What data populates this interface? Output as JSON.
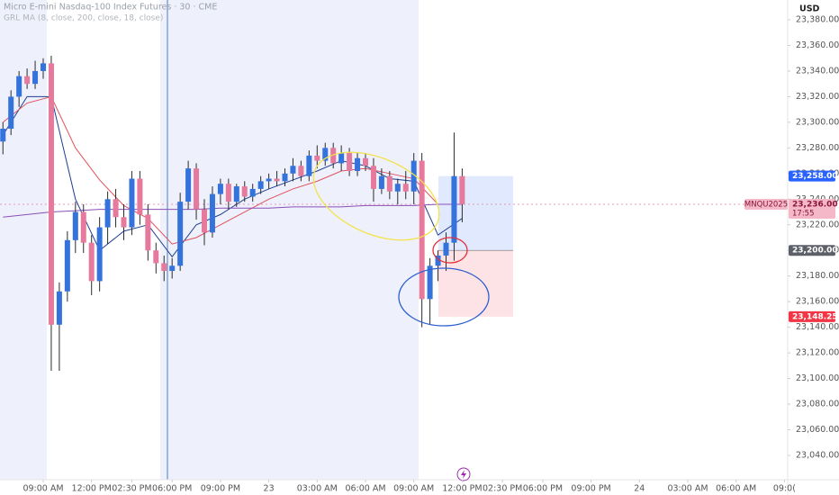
{
  "chart_data": {
    "type": "candlestick",
    "title": "Micro E-mini Nasdaq-100 Index Futures · 30 · CME",
    "subtitle": "GRL MA (8, close, 200, close, 18, close)",
    "currency": "USD",
    "up_color": "#3472dc",
    "down_color": "#e57a9c",
    "wick_color": "#2b2b2b",
    "candles": {
      "open": [
        23285,
        23295,
        23320,
        23336,
        23330,
        23340,
        23346,
        23142,
        23168,
        23208,
        23230,
        23206,
        23176,
        23218,
        23240,
        23226,
        23218,
        23256,
        23228,
        23200,
        23190,
        23184,
        23188,
        23238,
        23264,
        23232,
        23214,
        23244,
        23252,
        23238,
        23250,
        23242,
        23248,
        23254,
        23256,
        23254,
        23260,
        23266,
        23258,
        23274,
        23270,
        23280,
        23268,
        23276,
        23262,
        23272,
        23266,
        23248,
        23258,
        23246,
        23252,
        23246,
        23270,
        23162,
        23188,
        23196,
        23206,
        23258
      ],
      "high": [
        23300,
        23325,
        23340,
        23342,
        23348,
        23350,
        23352,
        23175,
        23215,
        23238,
        23236,
        23212,
        23226,
        23246,
        23248,
        23236,
        23262,
        23262,
        23236,
        23206,
        23196,
        23194,
        23245,
        23270,
        23268,
        23240,
        23250,
        23256,
        23256,
        23252,
        23254,
        23252,
        23258,
        23260,
        23262,
        23264,
        23272,
        23270,
        23278,
        23282,
        23284,
        23284,
        23282,
        23280,
        23276,
        23276,
        23272,
        23264,
        23262,
        23256,
        23262,
        23276,
        23276,
        23194,
        23200,
        23214,
        23292,
        23264
      ],
      "low": [
        23275,
        23290,
        23312,
        23326,
        23326,
        23334,
        23106,
        23106,
        23160,
        23198,
        23198,
        23165,
        23168,
        23205,
        23218,
        23208,
        23212,
        23220,
        23192,
        23182,
        23176,
        23178,
        23184,
        23232,
        23224,
        23204,
        23210,
        23236,
        23232,
        23234,
        23238,
        23238,
        23244,
        23248,
        23250,
        23250,
        23254,
        23254,
        23254,
        23264,
        23266,
        23264,
        23262,
        23258,
        23258,
        23262,
        23238,
        23244,
        23240,
        23236,
        23240,
        23236,
        23140,
        23142,
        23176,
        23184,
        23192,
        23222
      ],
      "close": [
        23295,
        23320,
        23336,
        23330,
        23340,
        23346,
        23142,
        23168,
        23208,
        23230,
        23206,
        23176,
        23218,
        23240,
        23226,
        23218,
        23256,
        23228,
        23200,
        23190,
        23184,
        23188,
        23238,
        23264,
        23232,
        23214,
        23244,
        23252,
        23238,
        23250,
        23242,
        23248,
        23254,
        23256,
        23254,
        23260,
        23266,
        23258,
        23274,
        23270,
        23280,
        23268,
        23276,
        23262,
        23272,
        23266,
        23248,
        23258,
        23246,
        23252,
        23246,
        23270,
        23162,
        23188,
        23196,
        23206,
        23258,
        23236
      ]
    },
    "lines": [
      {
        "color": "#1f3f8f",
        "x": [
          0,
          3,
          6,
          9,
          12,
          15,
          18,
          21,
          24,
          27,
          30,
          33,
          36,
          39,
          42,
          45,
          48,
          51,
          54,
          57
        ],
        "values": [
          23290,
          23320,
          23320,
          23240,
          23200,
          23215,
          23220,
          23195,
          23220,
          23228,
          23240,
          23248,
          23255,
          23262,
          23270,
          23266,
          23256,
          23254,
          23212,
          23225
        ]
      },
      {
        "color": "#e0525c",
        "x": [
          0,
          3,
          6,
          9,
          12,
          15,
          18,
          21,
          24,
          27,
          30,
          33,
          36,
          39,
          42,
          45,
          48,
          51,
          54,
          57
        ],
        "values": [
          23300,
          23315,
          23320,
          23280,
          23255,
          23235,
          23225,
          23205,
          23210,
          23220,
          23230,
          23240,
          23248,
          23254,
          23262,
          23264,
          23260,
          23256,
          23236,
          23236
        ]
      },
      {
        "color": "#8a4fb5",
        "x": [
          0,
          3,
          6,
          9,
          12,
          15,
          18,
          21,
          24,
          27,
          30,
          33,
          36,
          39,
          42,
          45,
          48,
          51,
          54,
          57
        ],
        "values": [
          23226,
          23228,
          23230,
          23231,
          23232,
          23232,
          23232,
          23232,
          23232,
          23233,
          23233,
          23233,
          23234,
          23234,
          23234,
          23235,
          23235,
          23235,
          23236,
          23236
        ]
      }
    ],
    "ylim": [
      23040,
      23380
    ],
    "yticks": [
      {
        "value": 23040,
        "label": "23,040.00"
      },
      {
        "value": 23060,
        "label": "23,060.00"
      },
      {
        "value": 23080,
        "label": "23,080.00"
      },
      {
        "value": 23100,
        "label": "23,100.00"
      },
      {
        "value": 23120,
        "label": "23,120.00"
      },
      {
        "value": 23140,
        "label": "23,140.00"
      },
      {
        "value": 23160,
        "label": "23,160.00"
      },
      {
        "value": 23180,
        "label": "23,180.00"
      },
      {
        "value": 23200,
        "label": "23,200.00"
      },
      {
        "value": 23220,
        "label": "23,220.00"
      },
      {
        "value": 23240,
        "label": "23,240.00"
      },
      {
        "value": 23260,
        "label": "23,260.00"
      },
      {
        "value": 23280,
        "label": "23,280.00"
      },
      {
        "value": 23300,
        "label": "23,300.00"
      },
      {
        "value": 23320,
        "label": "23,320.00"
      },
      {
        "value": 23340,
        "label": "23,340.00"
      },
      {
        "value": 23360,
        "label": "23,360.00"
      },
      {
        "value": 23380,
        "label": "23,380.00"
      }
    ],
    "xticks": [
      {
        "value": 5,
        "label": "09:00 AM"
      },
      {
        "value": 11,
        "label": "12:00 PM"
      },
      {
        "value": 16,
        "label": "02:30 PM"
      },
      {
        "value": 21,
        "label": "06:00 PM"
      },
      {
        "value": 27,
        "label": "09:00 PM"
      },
      {
        "value": 33,
        "label": "23"
      },
      {
        "value": 39,
        "label": "03:00 AM"
      },
      {
        "value": 45,
        "label": "06:00 AM"
      },
      {
        "value": 51,
        "label": "09:00 AM"
      },
      {
        "value": 57,
        "label": "12:00 PM"
      },
      {
        "value": 62,
        "label": "02:30 PM"
      },
      {
        "value": 67,
        "label": "06:00 PM"
      },
      {
        "value": 73,
        "label": "09:00 PM"
      },
      {
        "value": 79,
        "label": "24"
      },
      {
        "value": 85,
        "label": "03:00 AM"
      },
      {
        "value": 91,
        "label": "06:00 AM"
      },
      {
        "value": 97,
        "label": "09:0("
      }
    ],
    "position": {
      "target": {
        "value": 23258,
        "label": "23,258.00"
      },
      "entry": {
        "value": 23200,
        "label": "23,200.00"
      },
      "stop": {
        "value": 23148.25,
        "label": "23,148.25"
      }
    },
    "last_price": {
      "name": "MNQU2025",
      "value": 23236,
      "label": "23,236.00",
      "countdown": "17:55"
    }
  }
}
